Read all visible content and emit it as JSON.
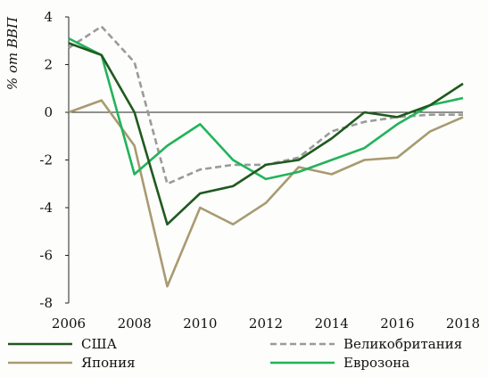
{
  "chart_data": {
    "type": "line",
    "ylabel": "% от ВВП",
    "xlabel": "",
    "x": [
      2006,
      2007,
      2008,
      2009,
      2010,
      2011,
      2012,
      2013,
      2014,
      2015,
      2016,
      2017,
      2018
    ],
    "x_ticks": [
      2006,
      2008,
      2010,
      2012,
      2014,
      2016,
      2018
    ],
    "xlim": [
      2006,
      2018
    ],
    "ylim": [
      -8,
      4
    ],
    "y_ticks": [
      4,
      2,
      0,
      -2,
      -4,
      -6,
      -8
    ],
    "grid": false,
    "legend_position": "bottom",
    "series": [
      {
        "name": "США",
        "color": "#1f5a1f",
        "dash": "solid",
        "values": [
          2.9,
          2.4,
          0.0,
          -4.7,
          -3.4,
          -3.1,
          -2.2,
          -2.0,
          -1.1,
          0.0,
          -0.2,
          0.3,
          1.2
        ]
      },
      {
        "name": "Великобритания",
        "color": "#9a9a9a",
        "dash": "dashed",
        "values": [
          2.7,
          3.6,
          2.1,
          -3.0,
          -2.4,
          -2.2,
          -2.2,
          -1.9,
          -0.8,
          -0.4,
          -0.2,
          -0.1,
          -0.1
        ]
      },
      {
        "name": "Япония",
        "color": "#a89a72",
        "dash": "solid",
        "values": [
          0.0,
          0.5,
          -1.4,
          -7.3,
          -4.0,
          -4.7,
          -3.8,
          -2.3,
          -2.6,
          -2.0,
          -1.9,
          -0.8,
          -0.2
        ]
      },
      {
        "name": "Еврозона",
        "color": "#22b35b",
        "dash": "solid",
        "values": [
          3.1,
          2.4,
          -2.6,
          -1.4,
          -0.5,
          -2.0,
          -2.8,
          -2.5,
          -2.0,
          -1.5,
          -0.5,
          0.3,
          0.6
        ]
      }
    ]
  }
}
